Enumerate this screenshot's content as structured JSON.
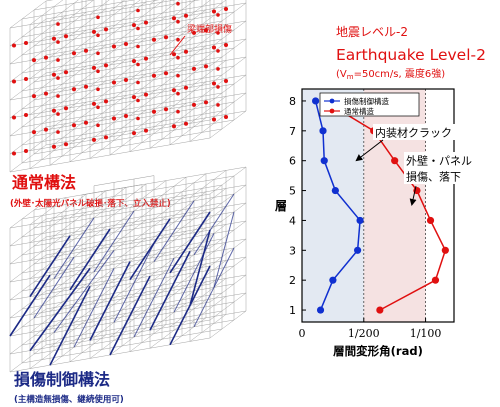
{
  "top_building": {
    "annotation": "梁端部損傷",
    "label": "通常構法",
    "sublabel": "(外壁･太陽光パネル破損･落下、立入禁止)",
    "dot_color": "#e01010"
  },
  "bottom_building": {
    "label": "損傷制御構法",
    "sublabel": "(主構造無損傷、継続使用可)",
    "brace_color": "#1c2a86"
  },
  "heading": {
    "line1": "地震レベル-2",
    "line2": "Earthquake Level-2",
    "line3_pre": "(V",
    "line3_sub": "m",
    "line3_post": "=50cm/s, 震度6強)",
    "color": "#e01010"
  },
  "chart_data": {
    "type": "line",
    "ylabel": "層",
    "xlabel": "層間変形角(rad)",
    "xticks": [
      "0",
      "1/200",
      "1/100"
    ],
    "xtick_values": [
      0,
      0.005,
      0.01
    ],
    "yticks": [
      "1",
      "2",
      "3",
      "4",
      "5",
      "6",
      "7",
      "8"
    ],
    "xlim": [
      0,
      0.0123
    ],
    "ylim": [
      0.6,
      8.4
    ],
    "shaded_bands": [
      {
        "from": 0,
        "to": 0.005,
        "color": "#e3e9f2"
      },
      {
        "from": 0.005,
        "to": 0.01,
        "color": "#f5e2e2"
      }
    ],
    "series": [
      {
        "name": "損傷制御構造",
        "color": "#1030d0",
        "x": [
          0.0015,
          0.0025,
          0.0045,
          0.0047,
          0.0027,
          0.0018,
          0.0017,
          0.0011
        ],
        "y": [
          1,
          2,
          3,
          4,
          5,
          6,
          7,
          8
        ]
      },
      {
        "name": "通常構造",
        "color": "#e01010",
        "x": [
          0.0063,
          0.0108,
          0.0116,
          0.0104,
          0.0093,
          0.0075,
          0.0058,
          0.0018
        ],
        "y": [
          1,
          2,
          3,
          4,
          5,
          6,
          7,
          8
        ]
      }
    ],
    "annotations": [
      {
        "text": "内装材クラック"
      },
      {
        "text": "外壁・パネル"
      },
      {
        "text": "損傷、落下"
      }
    ]
  }
}
